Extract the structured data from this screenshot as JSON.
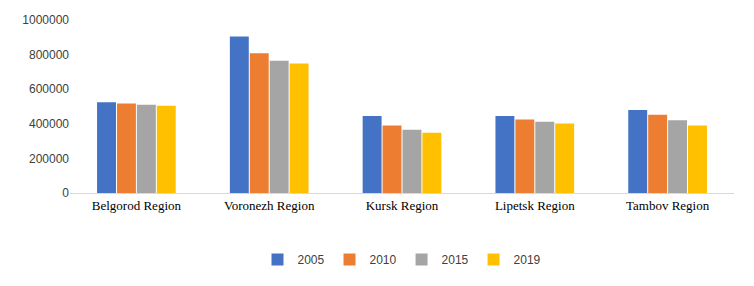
{
  "chart_data": {
    "type": "bar",
    "categories": [
      "Belgorod Region",
      "Voronezh Region",
      "Kursk Region",
      "Lipetsk Region",
      "Tambov Region"
    ],
    "series": [
      {
        "name": "2005",
        "color": "#4472c4",
        "values": [
          525000,
          905000,
          445000,
          445000,
          480000
        ]
      },
      {
        "name": "2010",
        "color": "#ed7d31",
        "values": [
          518000,
          808000,
          390000,
          425000,
          452000
        ]
      },
      {
        "name": "2015",
        "color": "#a5a5a5",
        "values": [
          510000,
          765000,
          365000,
          412000,
          420000
        ]
      },
      {
        "name": "2019",
        "color": "#ffc000",
        "values": [
          505000,
          748000,
          348000,
          402000,
          390000
        ]
      }
    ],
    "ylim": [
      0,
      1000000
    ],
    "yticks": [
      0,
      200000,
      400000,
      600000,
      800000,
      1000000
    ],
    "grid": false,
    "legend": "bottom"
  }
}
